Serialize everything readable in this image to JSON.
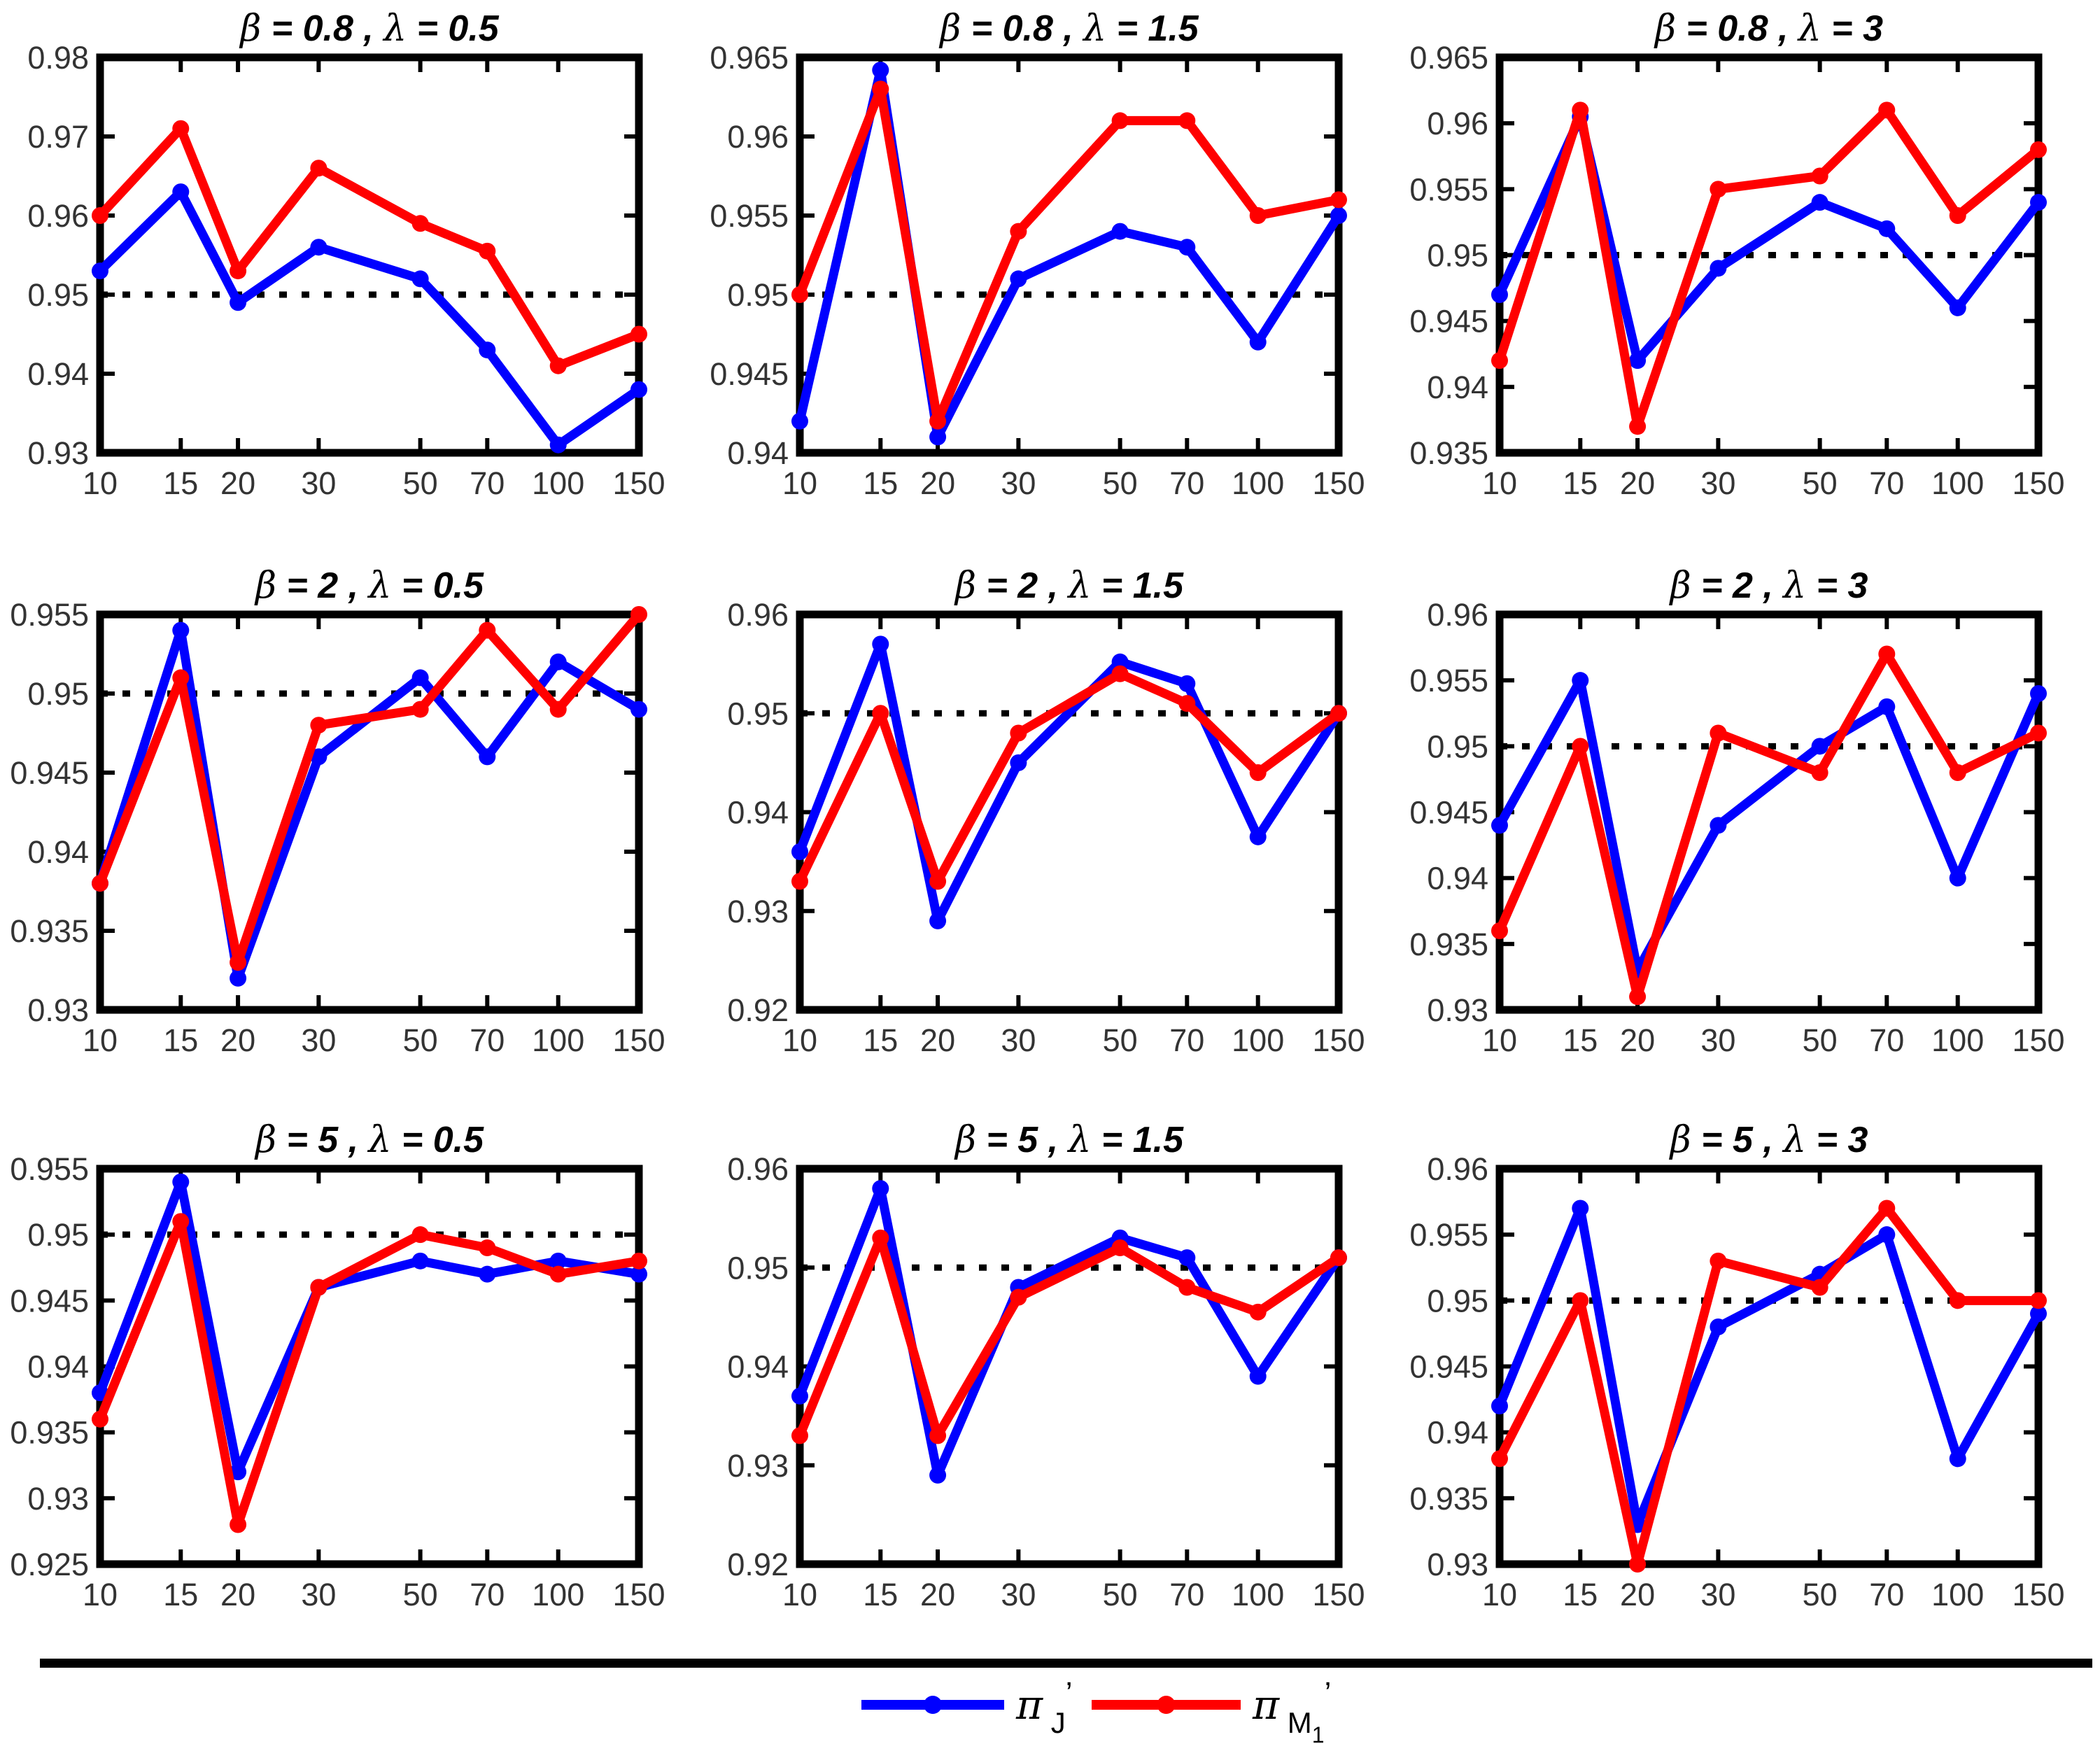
{
  "figure": {
    "background": "#ffffff",
    "axis_line_color": "#000000",
    "tick_label_color": "#333333",
    "title_color": "#000000",
    "separator_color": "#000000",
    "reference_line_style": "dotted",
    "legend": {
      "items": [
        {
          "name": "pi-J-prime",
          "color": "#0000ff",
          "symbol": "π",
          "sub": "J",
          "subsub": "",
          "prime": "’"
        },
        {
          "name": "pi-M1-prime",
          "color": "#ff0000",
          "symbol": "π",
          "sub": "M",
          "subsub": "1",
          "prime": "’"
        }
      ]
    }
  },
  "chart_data": [
    {
      "type": "line",
      "title": "β = 0.8 , λ = 0.5",
      "beta": "0.8",
      "lambda": "0.5",
      "x": [
        10,
        15,
        20,
        30,
        50,
        70,
        100,
        150
      ],
      "x_scale": "log",
      "x_tick_labels": [
        "10",
        "15",
        "20",
        "30",
        "50",
        "70",
        "100",
        "150"
      ],
      "ylim": [
        0.93,
        0.98
      ],
      "yticks": [
        "0.93",
        "0.94",
        "0.95",
        "0.96",
        "0.97",
        "0.98"
      ],
      "reference_line": 0.95,
      "grid": false,
      "legend_position": "below-figure",
      "series": [
        {
          "name": "π_J’",
          "color": "#0000ff",
          "values": [
            0.953,
            0.963,
            0.949,
            0.956,
            0.952,
            0.943,
            0.931,
            0.938
          ]
        },
        {
          "name": "π_M1’",
          "color": "#ff0000",
          "values": [
            0.96,
            0.971,
            0.953,
            0.966,
            0.959,
            0.9555,
            0.941,
            0.945
          ]
        }
      ]
    },
    {
      "type": "line",
      "title": "β = 0.8 , λ = 1.5",
      "beta": "0.8",
      "lambda": "1.5",
      "x": [
        10,
        15,
        20,
        30,
        50,
        70,
        100,
        150
      ],
      "x_scale": "log",
      "x_tick_labels": [
        "10",
        "15",
        "20",
        "30",
        "50",
        "70",
        "100",
        "150"
      ],
      "ylim": [
        0.94,
        0.965
      ],
      "yticks": [
        "0.94",
        "0.945",
        "0.95",
        "0.955",
        "0.96",
        "0.965"
      ],
      "reference_line": 0.95,
      "grid": false,
      "series": [
        {
          "name": "π_J’",
          "color": "#0000ff",
          "values": [
            0.942,
            0.9642,
            0.941,
            0.951,
            0.954,
            0.953,
            0.947,
            0.955
          ]
        },
        {
          "name": "π_M1’",
          "color": "#ff0000",
          "values": [
            0.95,
            0.963,
            0.942,
            0.954,
            0.961,
            0.961,
            0.955,
            0.956
          ]
        }
      ]
    },
    {
      "type": "line",
      "title": "β = 0.8 , λ = 3",
      "beta": "0.8",
      "lambda": "3",
      "x": [
        10,
        15,
        20,
        30,
        50,
        70,
        100,
        150
      ],
      "x_scale": "log",
      "x_tick_labels": [
        "10",
        "15",
        "20",
        "30",
        "50",
        "70",
        "100",
        "150"
      ],
      "ylim": [
        0.935,
        0.965
      ],
      "yticks": [
        "0.935",
        "0.94",
        "0.945",
        "0.95",
        "0.955",
        "0.96",
        "0.965"
      ],
      "reference_line": 0.95,
      "grid": false,
      "series": [
        {
          "name": "π_J’",
          "color": "#0000ff",
          "values": [
            0.947,
            0.9605,
            0.942,
            0.949,
            0.954,
            0.952,
            0.946,
            0.954
          ]
        },
        {
          "name": "π_M1’",
          "color": "#ff0000",
          "values": [
            0.942,
            0.961,
            0.937,
            0.955,
            0.956,
            0.961,
            0.953,
            0.958
          ]
        }
      ]
    },
    {
      "type": "line",
      "title": "β = 2 , λ = 0.5",
      "beta": "2",
      "lambda": "0.5",
      "x": [
        10,
        15,
        20,
        30,
        50,
        70,
        100,
        150
      ],
      "x_scale": "log",
      "x_tick_labels": [
        "10",
        "15",
        "20",
        "30",
        "50",
        "70",
        "100",
        "150"
      ],
      "ylim": [
        0.93,
        0.955
      ],
      "yticks": [
        "0.93",
        "0.935",
        "0.94",
        "0.945",
        "0.95",
        "0.955"
      ],
      "reference_line": 0.95,
      "grid": false,
      "series": [
        {
          "name": "π_J’",
          "color": "#0000ff",
          "values": [
            0.938,
            0.954,
            0.932,
            0.946,
            0.951,
            0.946,
            0.952,
            0.949
          ]
        },
        {
          "name": "π_M1’",
          "color": "#ff0000",
          "values": [
            0.938,
            0.951,
            0.933,
            0.948,
            0.949,
            0.954,
            0.949,
            0.955
          ]
        }
      ]
    },
    {
      "type": "line",
      "title": "β = 2 , λ = 1.5",
      "beta": "2",
      "lambda": "1.5",
      "x": [
        10,
        15,
        20,
        30,
        50,
        70,
        100,
        150
      ],
      "x_scale": "log",
      "x_tick_labels": [
        "10",
        "15",
        "20",
        "30",
        "50",
        "70",
        "100",
        "150"
      ],
      "ylim": [
        0.92,
        0.96
      ],
      "yticks": [
        "0.92",
        "0.93",
        "0.94",
        "0.95",
        "0.96"
      ],
      "reference_line": 0.95,
      "grid": false,
      "series": [
        {
          "name": "π_J’",
          "color": "#0000ff",
          "values": [
            0.936,
            0.957,
            0.929,
            0.945,
            0.9552,
            0.953,
            0.9375,
            0.95
          ]
        },
        {
          "name": "π_M1’",
          "color": "#ff0000",
          "values": [
            0.933,
            0.95,
            0.933,
            0.948,
            0.954,
            0.951,
            0.944,
            0.95
          ]
        }
      ]
    },
    {
      "type": "line",
      "title": "β = 2 , λ = 3",
      "beta": "2",
      "lambda": "3",
      "x": [
        10,
        15,
        20,
        30,
        50,
        70,
        100,
        150
      ],
      "x_scale": "log",
      "x_tick_labels": [
        "10",
        "15",
        "20",
        "30",
        "50",
        "70",
        "100",
        "150"
      ],
      "ylim": [
        0.93,
        0.96
      ],
      "yticks": [
        "0.93",
        "0.935",
        "0.94",
        "0.945",
        "0.95",
        "0.955",
        "0.96"
      ],
      "reference_line": 0.95,
      "grid": false,
      "series": [
        {
          "name": "π_J’",
          "color": "#0000ff",
          "values": [
            0.944,
            0.955,
            0.933,
            0.944,
            0.95,
            0.953,
            0.94,
            0.954
          ]
        },
        {
          "name": "π_M1’",
          "color": "#ff0000",
          "values": [
            0.936,
            0.95,
            0.931,
            0.951,
            0.948,
            0.957,
            0.948,
            0.951
          ]
        }
      ]
    },
    {
      "type": "line",
      "title": "β = 5 , λ = 0.5",
      "beta": "5",
      "lambda": "0.5",
      "x": [
        10,
        15,
        20,
        30,
        50,
        70,
        100,
        150
      ],
      "x_scale": "log",
      "x_tick_labels": [
        "10",
        "15",
        "20",
        "30",
        "50",
        "70",
        "100",
        "150"
      ],
      "ylim": [
        0.925,
        0.955
      ],
      "yticks": [
        "0.925",
        "0.93",
        "0.935",
        "0.94",
        "0.945",
        "0.95",
        "0.955"
      ],
      "reference_line": 0.95,
      "grid": false,
      "series": [
        {
          "name": "π_J’",
          "color": "#0000ff",
          "values": [
            0.938,
            0.954,
            0.932,
            0.946,
            0.948,
            0.947,
            0.948,
            0.947
          ]
        },
        {
          "name": "π_M1’",
          "color": "#ff0000",
          "values": [
            0.936,
            0.951,
            0.928,
            0.946,
            0.95,
            0.949,
            0.947,
            0.948
          ]
        }
      ]
    },
    {
      "type": "line",
      "title": "β = 5 , λ = 1.5",
      "beta": "5",
      "lambda": "1.5",
      "x": [
        10,
        15,
        20,
        30,
        50,
        70,
        100,
        150
      ],
      "x_scale": "log",
      "x_tick_labels": [
        "10",
        "15",
        "20",
        "30",
        "50",
        "70",
        "100",
        "150"
      ],
      "ylim": [
        0.92,
        0.96
      ],
      "yticks": [
        "0.92",
        "0.93",
        "0.94",
        "0.95",
        "0.96"
      ],
      "reference_line": 0.95,
      "grid": false,
      "series": [
        {
          "name": "π_J’",
          "color": "#0000ff",
          "values": [
            0.937,
            0.958,
            0.929,
            0.948,
            0.953,
            0.951,
            0.939,
            0.951
          ]
        },
        {
          "name": "π_M1’",
          "color": "#ff0000",
          "values": [
            0.933,
            0.953,
            0.933,
            0.947,
            0.952,
            0.948,
            0.9455,
            0.951
          ]
        }
      ]
    },
    {
      "type": "line",
      "title": "β = 5 , λ = 3",
      "beta": "5",
      "lambda": "3",
      "x": [
        10,
        15,
        20,
        30,
        50,
        70,
        100,
        150
      ],
      "x_scale": "log",
      "x_tick_labels": [
        "10",
        "15",
        "20",
        "30",
        "50",
        "70",
        "100",
        "150"
      ],
      "ylim": [
        0.93,
        0.96
      ],
      "yticks": [
        "0.93",
        "0.935",
        "0.94",
        "0.945",
        "0.95",
        "0.955",
        "0.96"
      ],
      "reference_line": 0.95,
      "grid": false,
      "series": [
        {
          "name": "π_J’",
          "color": "#0000ff",
          "values": [
            0.942,
            0.957,
            0.933,
            0.948,
            0.952,
            0.955,
            0.938,
            0.949
          ]
        },
        {
          "name": "π_M1’",
          "color": "#ff0000",
          "values": [
            0.938,
            0.95,
            0.93,
            0.953,
            0.951,
            0.957,
            0.95,
            0.95
          ]
        }
      ]
    }
  ]
}
